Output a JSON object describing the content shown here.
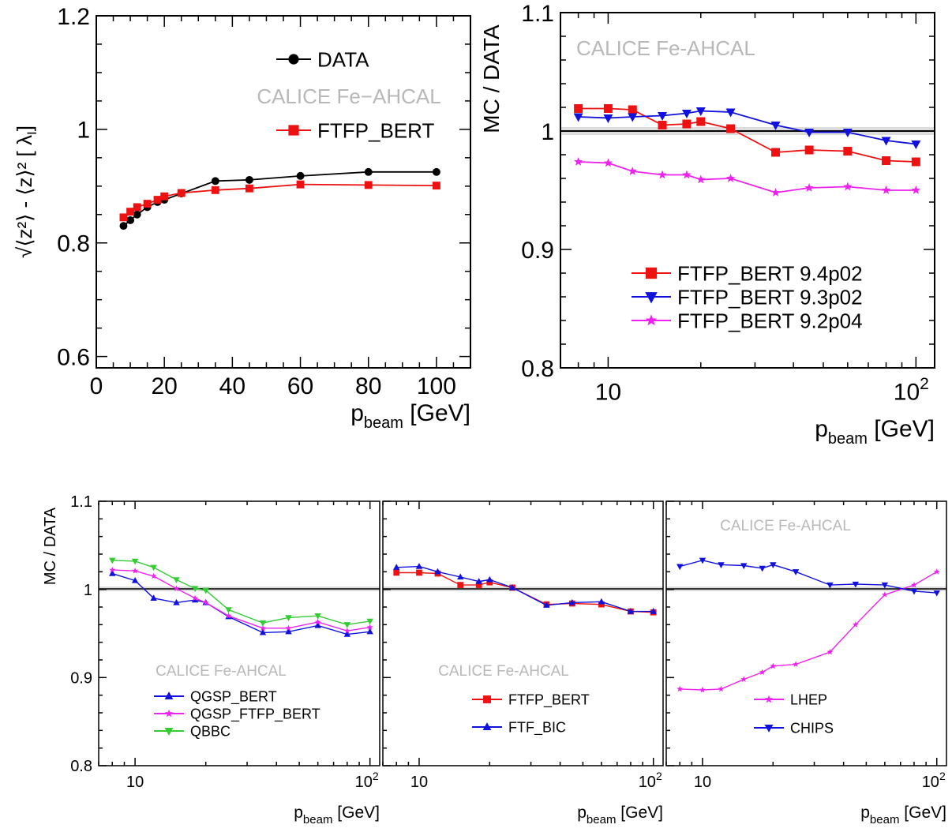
{
  "xlabel_main": "p",
  "xlabel_sub": "beam",
  "xlabel_unit": "[GeV]",
  "ylabel_ratio": "MC / DATA",
  "ylabel_width": "√⟨z²⟩ - ⟨z⟩² [ λ",
  "ylabel_width_sub": "I",
  "ylabel_width_close": "]",
  "watermark": "CALICE Fe−AHCAL",
  "watermark_small": "CALICE Fe-AHCAL",
  "log_tick_10": "10",
  "log_tick_100_base": "10",
  "log_tick_100_exp": "2",
  "colors": {
    "data": "#000000",
    "red": "#ee1111",
    "blue": "#1111dd",
    "magenta": "#ee22ee",
    "green": "#33cc33",
    "watermark": "#b8b8b8"
  },
  "chart_data": [
    {
      "id": "width",
      "type": "line",
      "xscale": "linear",
      "xlim": [
        0,
        110
      ],
      "ylim": [
        0.58,
        1.2
      ],
      "xticks": [
        "0",
        "20",
        "40",
        "60",
        "80",
        "100"
      ],
      "yticks": [
        "0.6",
        "0.8",
        "1",
        "1.2"
      ],
      "legend_placement": "top-right",
      "series": [
        {
          "name": "DATA",
          "marker": "circle",
          "color": "#000000",
          "x": [
            8,
            10,
            12,
            15,
            18,
            20,
            25,
            35,
            45,
            60,
            80,
            100
          ],
          "y": [
            0.83,
            0.84,
            0.85,
            0.863,
            0.872,
            0.876,
            0.887,
            0.909,
            0.911,
            0.918,
            0.925,
            0.925
          ]
        },
        {
          "name": "FTFP_BERT",
          "marker": "square",
          "color": "#ee1111",
          "x": [
            8,
            10,
            12,
            15,
            18,
            20,
            25,
            35,
            45,
            60,
            80,
            100
          ],
          "y": [
            0.845,
            0.855,
            0.863,
            0.869,
            0.876,
            0.882,
            0.888,
            0.893,
            0.896,
            0.903,
            0.902,
            0.901
          ]
        }
      ]
    },
    {
      "id": "versions",
      "type": "line",
      "xscale": "log",
      "xlim": [
        7,
        115
      ],
      "ylim": [
        0.8,
        1.1
      ],
      "yticks": [
        "0.8",
        "0.9",
        "1",
        "1.1"
      ],
      "legend_placement": "bottom-right",
      "series": [
        {
          "name": "FTFP_BERT 9.4p02",
          "marker": "square",
          "color": "#ee1111",
          "x": [
            8,
            10,
            12,
            15,
            18,
            20,
            25,
            35,
            45,
            60,
            80,
            100
          ],
          "y": [
            1.019,
            1.019,
            1.018,
            1.005,
            1.006,
            1.008,
            1.002,
            0.982,
            0.984,
            0.983,
            0.975,
            0.974
          ]
        },
        {
          "name": "FTFP_BERT 9.3p02",
          "marker": "triangle-down",
          "color": "#1111dd",
          "x": [
            8,
            10,
            12,
            15,
            18,
            20,
            25,
            35,
            45,
            60,
            80,
            100
          ],
          "y": [
            1.012,
            1.011,
            1.012,
            1.013,
            1.015,
            1.017,
            1.016,
            1.005,
            0.999,
            0.999,
            0.992,
            0.989
          ]
        },
        {
          "name": "FTFP_BERT 9.2p04",
          "marker": "star",
          "color": "#ee22ee",
          "x": [
            8,
            10,
            12,
            15,
            18,
            20,
            25,
            35,
            45,
            60,
            80,
            100
          ],
          "y": [
            0.974,
            0.973,
            0.966,
            0.963,
            0.963,
            0.959,
            0.96,
            0.948,
            0.952,
            0.953,
            0.95,
            0.95
          ]
        }
      ]
    },
    {
      "id": "qgsp",
      "type": "line",
      "xscale": "log",
      "xlim": [
        7,
        110
      ],
      "ylim": [
        0.8,
        1.1
      ],
      "yticks": [
        "0.8",
        "0.9",
        "1",
        "1.1"
      ],
      "legend_placement": "bottom-left",
      "series": [
        {
          "name": "QGSP_BERT",
          "marker": "triangle-up",
          "color": "#1111dd",
          "x": [
            8,
            10,
            12,
            15,
            18,
            20,
            25,
            35,
            45,
            60,
            80,
            100
          ],
          "y": [
            1.018,
            1.01,
            0.99,
            0.985,
            0.988,
            0.985,
            0.969,
            0.951,
            0.952,
            0.959,
            0.949,
            0.952
          ]
        },
        {
          "name": "QGSP_FTFP_BERT",
          "marker": "star",
          "color": "#ee22ee",
          "x": [
            8,
            10,
            12,
            15,
            18,
            20,
            25,
            35,
            45,
            60,
            80,
            100
          ],
          "y": [
            1.022,
            1.021,
            1.015,
            1.001,
            0.99,
            0.985,
            0.97,
            0.956,
            0.956,
            0.963,
            0.953,
            0.957
          ]
        },
        {
          "name": "QBBC",
          "marker": "triangle-down",
          "color": "#33cc33",
          "x": [
            8,
            10,
            12,
            15,
            18,
            20,
            25,
            35,
            45,
            60,
            80,
            100
          ],
          "y": [
            1.033,
            1.032,
            1.025,
            1.011,
            1.001,
            0.999,
            0.977,
            0.962,
            0.968,
            0.97,
            0.96,
            0.964
          ]
        }
      ]
    },
    {
      "id": "ftf",
      "type": "line",
      "xscale": "log",
      "xlim": [
        7,
        110
      ],
      "ylim": [
        0.8,
        1.1
      ],
      "legend_placement": "bottom-center",
      "series": [
        {
          "name": "FTFP_BERT",
          "marker": "square",
          "color": "#ee1111",
          "x": [
            8,
            10,
            12,
            15,
            18,
            20,
            25,
            35,
            45,
            60,
            80,
            100
          ],
          "y": [
            1.019,
            1.019,
            1.018,
            1.005,
            1.005,
            1.008,
            1.002,
            0.983,
            0.984,
            0.983,
            0.975,
            0.974
          ]
        },
        {
          "name": "FTF_BIC",
          "marker": "triangle-up",
          "color": "#1111dd",
          "x": [
            8,
            10,
            12,
            15,
            18,
            20,
            25,
            35,
            45,
            60,
            80,
            100
          ],
          "y": [
            1.025,
            1.026,
            1.02,
            1.014,
            1.009,
            1.011,
            1.002,
            0.982,
            0.985,
            0.986,
            0.975,
            0.975
          ]
        }
      ]
    },
    {
      "id": "lhep",
      "type": "line",
      "xscale": "log",
      "xlim": [
        7,
        110
      ],
      "ylim": [
        0.8,
        1.1
      ],
      "legend_placement": "bottom-center",
      "series": [
        {
          "name": "LHEP",
          "marker": "star",
          "color": "#ee22ee",
          "x": [
            8,
            10,
            12,
            15,
            18,
            20,
            25,
            35,
            45,
            60,
            80,
            100
          ],
          "y": [
            0.887,
            0.886,
            0.887,
            0.898,
            0.906,
            0.913,
            0.915,
            0.929,
            0.96,
            0.994,
            1.005,
            1.02
          ]
        },
        {
          "name": "CHIPS",
          "marker": "triangle-down",
          "color": "#1111dd",
          "x": [
            8,
            10,
            12,
            15,
            18,
            20,
            25,
            35,
            45,
            60,
            80,
            100
          ],
          "y": [
            1.026,
            1.033,
            1.028,
            1.027,
            1.024,
            1.028,
            1.02,
            1.005,
            1.006,
            1.005,
            0.998,
            0.996
          ]
        }
      ]
    }
  ]
}
